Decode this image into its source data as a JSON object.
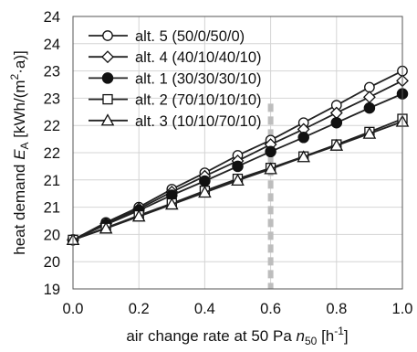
{
  "chart_data": {
    "type": "line",
    "xlabel_parts": {
      "pre": "air change rate at 50 Pa ",
      "var": "n",
      "sub": "50",
      "unit_pre": " [h",
      "unit_sup": "-1",
      "unit_post": "]"
    },
    "ylabel_parts": {
      "pre": "heat demand ",
      "var": "E",
      "sub": "A",
      "unit_pre": " [kWh/(m",
      "unit_sup": "2",
      "unit_post": "·a)]"
    },
    "xlim": [
      0,
      1
    ],
    "ylim": [
      19,
      24
    ],
    "x_ticks": [
      0,
      0.2,
      0.4,
      0.6,
      0.8,
      1
    ],
    "x_tick_labels": [
      "0.0",
      "0.2",
      "0.4",
      "0.6",
      "0.8",
      "1.0"
    ],
    "y_ticks": [
      19,
      19.5,
      20,
      20.5,
      21,
      21.5,
      22,
      22.5,
      23,
      23.5,
      24
    ],
    "y_tick_labels": [
      "19",
      "20",
      "20",
      "21",
      "21",
      "22",
      "22",
      "23",
      "23",
      "24",
      "24"
    ],
    "grid": true,
    "legend_position": "top-left",
    "vertical_marker": {
      "x": 0.6,
      "color": "#bdbdbd",
      "style": "dashed"
    },
    "x": [
      0,
      0.1,
      0.2,
      0.3,
      0.4,
      0.5,
      0.6,
      0.7,
      0.8,
      0.9,
      1.0
    ],
    "series": [
      {
        "name": "alt. 5 (50/0/50/0)",
        "marker": "circle-open",
        "values": [
          19.9,
          20.22,
          20.5,
          20.83,
          21.13,
          21.45,
          21.73,
          22.05,
          22.37,
          22.7,
          23.0
        ]
      },
      {
        "name": "alt. 4 (40/10/40/10)",
        "marker": "diamond-open",
        "values": [
          19.9,
          20.2,
          20.47,
          20.78,
          21.07,
          21.35,
          21.65,
          21.93,
          22.23,
          22.52,
          22.82
        ]
      },
      {
        "name": "alt. 1 (30/30/30/10)",
        "marker": "circle-filled",
        "values": [
          19.9,
          20.18,
          20.44,
          20.72,
          20.98,
          21.25,
          21.52,
          21.78,
          22.05,
          22.32,
          22.58
        ]
      },
      {
        "name": "alt. 2 (70/10/10/10)",
        "marker": "square-open",
        "values": [
          19.9,
          20.12,
          20.35,
          20.57,
          20.8,
          21.02,
          21.22,
          21.43,
          21.65,
          21.88,
          22.12
        ]
      },
      {
        "name": "alt. 3 (10/10/70/10)",
        "marker": "triangle-open",
        "values": [
          19.9,
          20.11,
          20.33,
          20.55,
          20.77,
          20.99,
          21.2,
          21.42,
          21.63,
          21.85,
          22.07
        ]
      }
    ]
  }
}
